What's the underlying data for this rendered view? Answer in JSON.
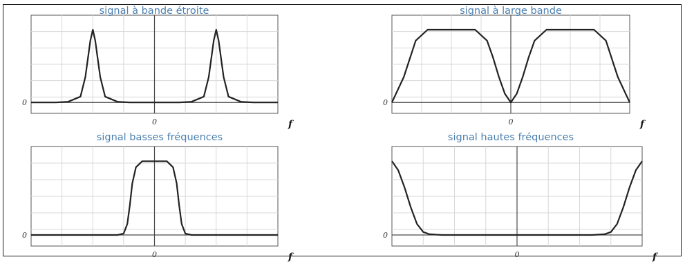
{
  "chart_data": [
    {
      "type": "line",
      "title": "signal à bande étroite",
      "xlabel": "f",
      "xtick_label": "0",
      "ytick_label": "0",
      "x": [
        -1,
        -0.9,
        -0.8,
        -0.7,
        -0.6,
        -0.56,
        -0.52,
        -0.5,
        -0.48,
        -0.44,
        -0.4,
        -0.3,
        -0.2,
        -0.1,
        0,
        0.1,
        0.2,
        0.3,
        0.4,
        0.44,
        0.48,
        0.5,
        0.52,
        0.56,
        0.6,
        0.7,
        0.8,
        0.9,
        1
      ],
      "series": [
        {
          "values": [
            0,
            0,
            0,
            0.01,
            0.08,
            0.35,
            0.85,
            1,
            0.85,
            0.35,
            0.08,
            0.01,
            0,
            0,
            0,
            0,
            0,
            0.01,
            0.08,
            0.35,
            0.85,
            1,
            0.85,
            0.35,
            0.08,
            0.01,
            0,
            0,
            0
          ]
        }
      ],
      "xlim": [
        -1,
        1
      ],
      "ylim": [
        -0.15,
        1.2
      ],
      "grid": true
    },
    {
      "type": "line",
      "title": "signal à large bande",
      "xlabel": "f",
      "xtick_label": "0",
      "ytick_label": "0",
      "x": [
        -1,
        -0.9,
        -0.8,
        -0.7,
        -0.6,
        -0.5,
        -0.4,
        -0.3,
        -0.2,
        -0.15,
        -0.1,
        -0.05,
        0,
        0.05,
        0.1,
        0.15,
        0.2,
        0.3,
        0.4,
        0.5,
        0.6,
        0.7,
        0.8,
        0.9,
        1
      ],
      "series": [
        {
          "values": [
            0,
            0.35,
            0.85,
            1,
            1,
            1,
            1,
            1,
            0.85,
            0.62,
            0.35,
            0.12,
            0,
            0.12,
            0.35,
            0.62,
            0.85,
            1,
            1,
            1,
            1,
            1,
            0.85,
            0.35,
            0
          ]
        }
      ],
      "xlim": [
        -1,
        1
      ],
      "ylim": [
        -0.15,
        1.2
      ],
      "grid": true
    },
    {
      "type": "line",
      "title": "signal basses fréquences",
      "xlabel": "f",
      "xtick_label": "0",
      "ytick_label": "0",
      "x": [
        -1,
        -0.5,
        -0.3,
        -0.25,
        -0.22,
        -0.2,
        -0.18,
        -0.15,
        -0.1,
        0,
        0.1,
        0.15,
        0.18,
        0.2,
        0.22,
        0.25,
        0.3,
        0.5,
        1
      ],
      "series": [
        {
          "values": [
            0,
            0,
            0,
            0.02,
            0.15,
            0.4,
            0.7,
            0.92,
            1,
            1,
            1,
            0.92,
            0.7,
            0.4,
            0.15,
            0.02,
            0,
            0,
            0
          ]
        }
      ],
      "xlim": [
        -1,
        1
      ],
      "ylim": [
        -0.15,
        1.2
      ],
      "grid": true
    },
    {
      "type": "line",
      "title": "signal hautes fréquences",
      "xlabel": "f",
      "xtick_label": "0",
      "ytick_label": "0",
      "x": [
        -1,
        -0.95,
        -0.9,
        -0.85,
        -0.8,
        -0.75,
        -0.7,
        -0.6,
        -0.5,
        0,
        0.5,
        0.6,
        0.7,
        0.75,
        0.8,
        0.85,
        0.9,
        0.95,
        1
      ],
      "series": [
        {
          "values": [
            1,
            0.88,
            0.65,
            0.38,
            0.15,
            0.04,
            0.01,
            0,
            0,
            0,
            0,
            0,
            0.01,
            0.04,
            0.15,
            0.38,
            0.65,
            0.88,
            1
          ]
        }
      ],
      "xlim": [
        -1,
        1
      ],
      "ylim": [
        -0.15,
        1.2
      ],
      "grid": true
    }
  ]
}
